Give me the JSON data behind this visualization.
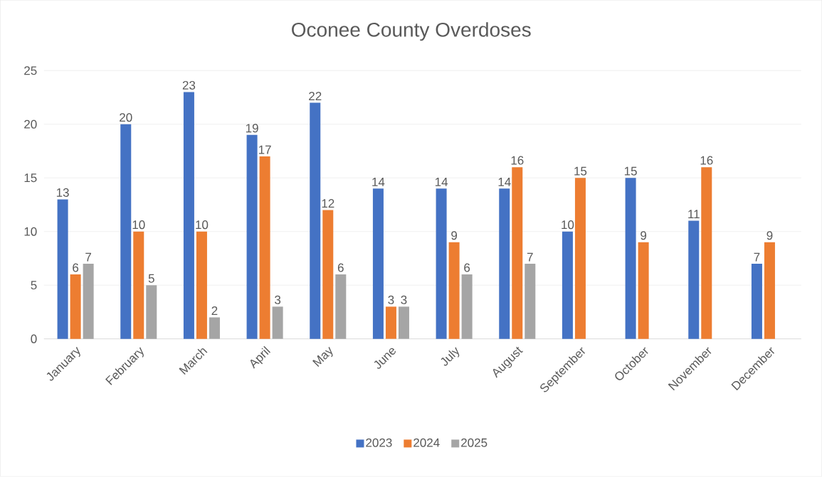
{
  "chart_data": {
    "type": "bar",
    "title": "Oconee County Overdoses",
    "categories": [
      "January",
      "February",
      "March",
      "April",
      "May",
      "June",
      "July",
      "August",
      "September",
      "October",
      "November",
      "December"
    ],
    "series": [
      {
        "name": "2023",
        "color": "#4472c4",
        "values": [
          13,
          20,
          23,
          19,
          22,
          14,
          14,
          14,
          10,
          15,
          11,
          7
        ]
      },
      {
        "name": "2024",
        "color": "#ed7d31",
        "values": [
          6,
          10,
          10,
          17,
          12,
          3,
          9,
          16,
          15,
          9,
          16,
          9
        ]
      },
      {
        "name": "2025",
        "color": "#a5a5a5",
        "values": [
          7,
          5,
          2,
          3,
          6,
          3,
          6,
          7,
          null,
          null,
          null,
          null
        ]
      }
    ],
    "ylim": [
      0,
      25
    ],
    "yticks": [
      0,
      5,
      10,
      15,
      20,
      25
    ],
    "grid": "y",
    "legend": "bottom",
    "data_labels": true
  }
}
